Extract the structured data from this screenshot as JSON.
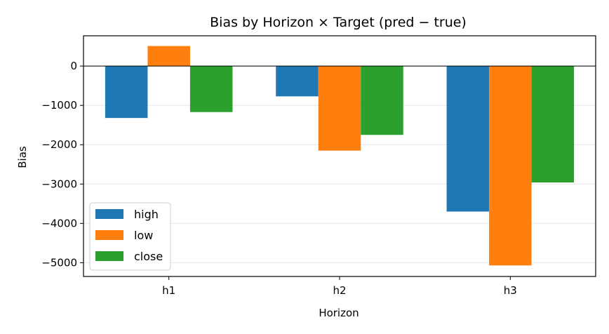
{
  "chart_data": {
    "type": "bar",
    "title": "Bias by Horizon × Target (pred − true)",
    "xlabel": "Horizon",
    "ylabel": "Bias",
    "categories": [
      "h1",
      "h2",
      "h3"
    ],
    "series": [
      {
        "name": "high",
        "color": "#1f77b4",
        "values": [
          -1320,
          -770,
          -3700
        ]
      },
      {
        "name": "low",
        "color": "#ff7f0e",
        "values": [
          510,
          -2150,
          -5070
        ]
      },
      {
        "name": "close",
        "color": "#2ca02c",
        "values": [
          -1170,
          -1750,
          -2960
        ]
      }
    ],
    "ylim": [
      -5350,
      770
    ],
    "yticks": [
      0,
      -1000,
      -2000,
      -3000,
      -4000,
      -5000
    ],
    "ytick_labels": [
      "0",
      "−1000",
      "−2000",
      "−3000",
      "−4000",
      "−5000"
    ],
    "grid": "horizontal",
    "zero_line": true,
    "legend_position": "lower-left"
  }
}
